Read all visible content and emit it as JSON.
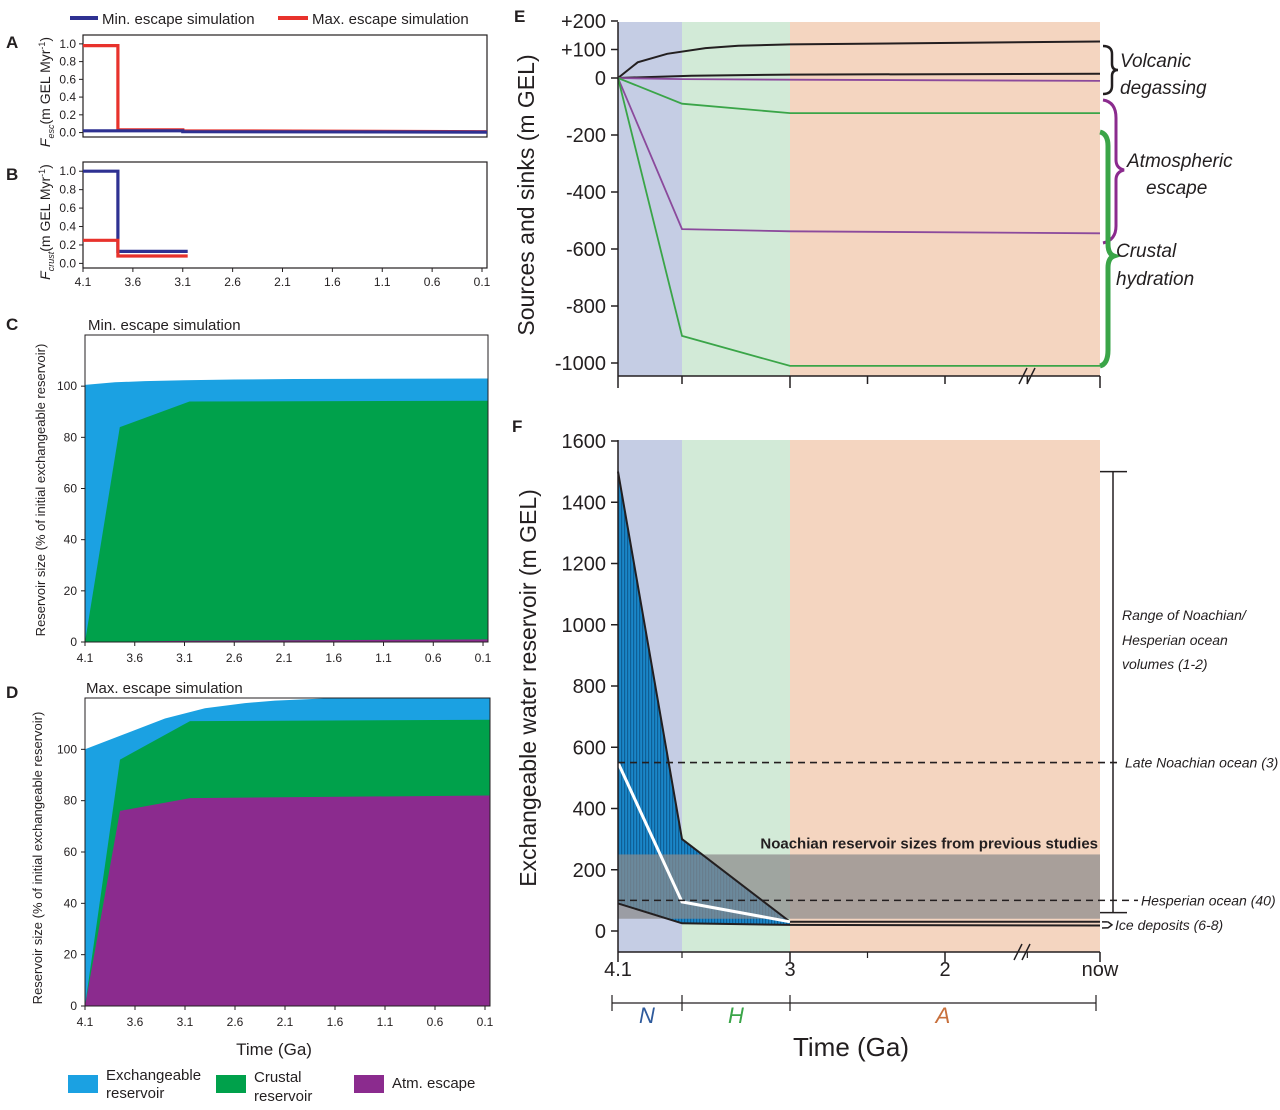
{
  "colors": {
    "min_escape": "#2e3192",
    "max_escape": "#e8322c",
    "exchangeable": "#1ba1e2",
    "crustal": "#00a14b",
    "atm_escape": "#8b2b8e",
    "noachian_bg": "#c5cde4",
    "hesperian_bg": "#d2ead7",
    "amazonian_bg": "#f4d5c0",
    "volcanic": "#231f20",
    "escape_line": "#8b4a9c",
    "crust_line": "#3aa548",
    "prev_studies_box": "#8a8a8a"
  },
  "panels": {
    "A": {
      "label": "A"
    },
    "B": {
      "label": "B"
    },
    "C": {
      "label": "C"
    },
    "D": {
      "label": "D"
    },
    "E": {
      "label": "E"
    },
    "F": {
      "label": "F"
    }
  },
  "legend_top": [
    {
      "name": "Min. escape simulation",
      "color": "#2e3192"
    },
    {
      "name": "Max. escape simulation",
      "color": "#e8322c"
    }
  ],
  "legend_bottom": [
    {
      "line1": "Exchangeable",
      "line2": "reservoir",
      "color": "#1ba1e2"
    },
    {
      "line1": "Crustal",
      "line2": "reservoir",
      "color": "#00a14b"
    },
    {
      "line1": "Atm. escape",
      "line2": "",
      "color": "#8b2b8e"
    }
  ],
  "chart_data": [
    {
      "id": "A",
      "type": "line",
      "ylabel": "F_esc (m GEL Myr⁻¹)",
      "ylabel_main": "(m GEL Myr",
      "ylabel_sup": "-1",
      "ylabel_close": ")",
      "ylabel_F": "F",
      "ylabel_sub": "esc",
      "xlim": [
        4.1,
        0.05
      ],
      "ylim": [
        -0.05,
        1.1
      ],
      "yticks": [
        "0.0",
        "0.2",
        "0.4",
        "0.6",
        "0.8",
        "1.0"
      ],
      "series": [
        {
          "name": "Max. escape simulation",
          "color": "#e8322c",
          "x": [
            4.1,
            3.75,
            3.75,
            3.1,
            3.1,
            0.05
          ],
          "y": [
            0.98,
            0.98,
            0.03,
            0.03,
            0.02,
            0.01
          ]
        },
        {
          "name": "Min. escape simulation",
          "color": "#2e3192",
          "x": [
            4.1,
            3.75,
            3.75,
            3.1,
            3.1,
            0.05
          ],
          "y": [
            0.02,
            0.02,
            0.02,
            0.02,
            0.01,
            0.005
          ]
        }
      ]
    },
    {
      "id": "B",
      "type": "line",
      "ylabel": "F_crust (m GEL Myr⁻¹)",
      "ylabel_main": "(m GEL Myr",
      "ylabel_sup": "-1",
      "ylabel_close": ")",
      "ylabel_F": "F",
      "ylabel_sub": "crust",
      "xlim": [
        4.1,
        0.05
      ],
      "ylim": [
        -0.05,
        1.1
      ],
      "yticks": [
        "0.0",
        "0.2",
        "0.4",
        "0.6",
        "0.8",
        "1.0"
      ],
      "xticks": [
        "4.1",
        "3.6",
        "3.1",
        "2.6",
        "2.1",
        "1.6",
        "1.1",
        "0.6",
        "0.1"
      ],
      "series": [
        {
          "name": "Min. escape simulation",
          "color": "#2e3192",
          "x": [
            4.1,
            3.75,
            3.75,
            3.05
          ],
          "y": [
            1.0,
            1.0,
            0.13,
            0.13
          ]
        },
        {
          "name": "Max. escape simulation",
          "color": "#e8322c",
          "x": [
            4.1,
            3.75,
            3.75,
            3.05
          ],
          "y": [
            0.25,
            0.25,
            0.08,
            0.08
          ]
        }
      ]
    },
    {
      "id": "C",
      "type": "area",
      "title": "Min. escape simulation",
      "ylabel": "Reservoir size (% of initial exchangeable reservoir)",
      "xlim": [
        4.1,
        0.05
      ],
      "ylim": [
        0,
        120
      ],
      "yticks": [
        "0",
        "20",
        "40",
        "60",
        "80",
        "100"
      ],
      "xticks": [
        "4.1",
        "3.6",
        "3.1",
        "2.6",
        "2.1",
        "1.6",
        "1.1",
        "0.6",
        "0.1"
      ],
      "series": [
        {
          "name": "Exchangeable reservoir",
          "color": "#1ba1e2",
          "x": [
            4.1,
            3.8,
            3.5,
            3.1,
            2.6,
            2.0,
            0.05
          ],
          "y": [
            100.5,
            101.5,
            102,
            102.3,
            102.6,
            102.8,
            103
          ]
        },
        {
          "name": "Crustal reservoir",
          "color": "#00a14b",
          "x": [
            4.1,
            3.75,
            3.05,
            0.05
          ],
          "y": [
            0,
            84,
            94,
            94.3
          ]
        },
        {
          "name": "Atm. escape",
          "color": "#8b2b8e",
          "x": [
            4.1,
            3.05,
            0.05
          ],
          "y": [
            0,
            0.5,
            1
          ]
        }
      ]
    },
    {
      "id": "D",
      "type": "area",
      "title": "Max. escape simulation",
      "ylabel": "Reservoir size (% of initial exchangeable reservoir)",
      "xlabel": "Time (Ga)",
      "xlim": [
        4.1,
        0.05
      ],
      "ylim": [
        0,
        120
      ],
      "yticks": [
        "0",
        "20",
        "40",
        "60",
        "80",
        "100"
      ],
      "xticks": [
        "4.1",
        "3.6",
        "3.1",
        "2.6",
        "2.1",
        "1.6",
        "1.1",
        "0.6",
        "0.1"
      ],
      "series": [
        {
          "name": "Exchangeable reservoir",
          "color": "#1ba1e2",
          "x": [
            4.1,
            3.7,
            3.3,
            2.9,
            2.5,
            2.2,
            1.6,
            0.05
          ],
          "y": [
            100,
            106,
            112,
            116,
            118,
            119,
            120,
            120
          ]
        },
        {
          "name": "Crustal reservoir",
          "color": "#00a14b",
          "x": [
            4.1,
            3.75,
            3.05,
            0.05
          ],
          "y": [
            0,
            96,
            111,
            111.5
          ]
        },
        {
          "name": "Atm. escape",
          "color": "#8b2b8e",
          "x": [
            4.1,
            3.75,
            3.05,
            0.05
          ],
          "y": [
            0,
            76,
            81,
            82
          ]
        }
      ]
    },
    {
      "id": "E",
      "type": "line",
      "ylabel": "Sources and sinks  (m GEL)",
      "ylim": [
        -1050,
        220
      ],
      "yticks": [
        "+200",
        "+100",
        "0",
        "-200",
        "-400",
        "-600",
        "-800",
        "-1000"
      ],
      "series": [
        {
          "name": "Volcanic degassing (upper)",
          "color": "#231f20",
          "t": [
            0,
            0.04,
            0.1,
            0.18,
            0.25,
            0.33,
            0.36,
            1.0
          ],
          "y": [
            0,
            55,
            85,
            105,
            113,
            117,
            118,
            128
          ]
        },
        {
          "name": "Volcanic degassing (lower)",
          "color": "#231f20",
          "t": [
            0,
            0.15,
            0.36,
            1.0
          ],
          "y": [
            0,
            8,
            12,
            15
          ]
        },
        {
          "name": "Atmospheric escape (min)",
          "color": "#8b4a9c",
          "t": [
            0,
            0.13,
            0.36,
            1.0
          ],
          "y": [
            0,
            -4,
            -6,
            -10
          ]
        },
        {
          "name": "Atmospheric escape (max)",
          "color": "#8b4a9c",
          "t": [
            0,
            0.13,
            0.36,
            1.0
          ],
          "y": [
            0,
            -530,
            -538,
            -545
          ]
        },
        {
          "name": "Crustal hydration (min)",
          "color": "#3aa548",
          "t": [
            0,
            0.13,
            0.36,
            1.0
          ],
          "y": [
            0,
            -90,
            -123,
            -123
          ]
        },
        {
          "name": "Crustal hydration (max)",
          "color": "#3aa548",
          "t": [
            0,
            0.13,
            0.36,
            1.0
          ],
          "y": [
            0,
            -905,
            -1010,
            -1010
          ]
        }
      ]
    },
    {
      "id": "F",
      "type": "line",
      "ylabel": "Exchangeable water reservoir (m GEL)",
      "xlabel": "Time (Ga)",
      "ylim": [
        -30,
        1600
      ],
      "yticks": [
        "0",
        "200",
        "400",
        "600",
        "800",
        "1000",
        "1200",
        "1400",
        "1600"
      ],
      "xticks": [
        "4.1",
        "3",
        "2",
        "now"
      ],
      "series": [
        {
          "name": "Upper bound",
          "color": "#231f20",
          "t": [
            0,
            0.13,
            0.36,
            1.0
          ],
          "y": [
            1500,
            300,
            30,
            30
          ]
        },
        {
          "name": "Lower bound",
          "color": "#231f20",
          "t": [
            0,
            0.13,
            0.36,
            1.0
          ],
          "y": [
            90,
            25,
            20,
            18
          ]
        },
        {
          "name": "Median",
          "color": "#ffffff",
          "t": [
            0,
            0.13,
            0.36
          ],
          "y": [
            550,
            95,
            30
          ]
        }
      ]
    }
  ],
  "panelE": {
    "annotations": {
      "volcanic_1": "Volcanic",
      "volcanic_2": "degassing",
      "atm_1": "Atmospheric",
      "atm_2": "escape",
      "crust_1": "Crustal",
      "crust_2": "hydration"
    }
  },
  "panelF": {
    "eras": [
      "N",
      "H",
      "A"
    ],
    "era_colors": [
      "#2e5a9c",
      "#3aa548",
      "#c8703c"
    ],
    "prev_studies_label": "Noachian reservoir sizes from previous studies",
    "prev_studies_range": [
      40,
      250
    ],
    "range_label": [
      "Range of Noachian/",
      "Hesperian ocean",
      "volumes (1-2)"
    ],
    "range_values": [
      60,
      1500
    ],
    "late_noachian_label": "Late Noachian ocean (3)",
    "late_noachian_value": 550,
    "hesperian_label": "Hesperian ocean (40)",
    "hesperian_value": 100,
    "ice_label": "Ice deposits (6-8)",
    "ice_value": [
      10,
      30
    ]
  }
}
